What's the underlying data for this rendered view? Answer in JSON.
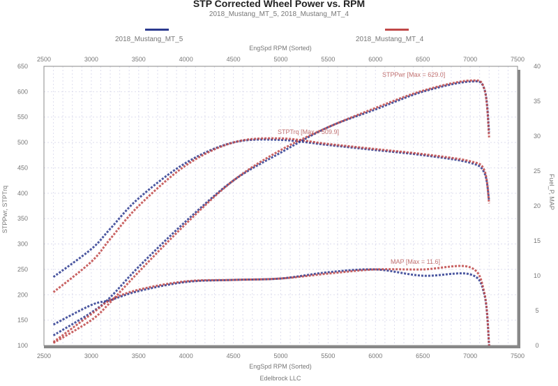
{
  "chart_data": {
    "type": "line",
    "title": "STP Corrected Wheel Power vs. RPM",
    "subtitle": "2018_Mustang_MT_5, 2018_Mustang_MT_4",
    "legend": [
      {
        "name": "2018_Mustang_MT_5",
        "color": "#2b3a8f",
        "position": "top-left"
      },
      {
        "name": "2018_Mustang_MT_4",
        "color": "#c04848",
        "position": "top-right"
      }
    ],
    "xlabel": "EngSpd RPM    (Sorted)",
    "xlabel_top": "EngSpd RPM    (Sorted)",
    "footer": "Edelbrock LLC",
    "ylabel_left": "STPPwr, STPTrq",
    "ylabel_right": "Fuel_P, MAP",
    "xlim": [
      2500,
      7500
    ],
    "xticks": [
      2500,
      3000,
      3500,
      4000,
      4500,
      5000,
      5500,
      6000,
      6500,
      7000,
      7500
    ],
    "ylim_left": [
      100,
      650
    ],
    "yticks_left": [
      100,
      150,
      200,
      250,
      300,
      350,
      400,
      450,
      500,
      550,
      600,
      650
    ],
    "ylim_right": [
      0,
      40
    ],
    "yticks_right": [
      0,
      5,
      10,
      15,
      20,
      25,
      30,
      35,
      40
    ],
    "grid": true,
    "annotations": [
      {
        "text": "STPPwr [Max = 629.0]",
        "x": 6300,
        "y": 622
      },
      {
        "text": "STPTrq [Max = 509.9]",
        "x": 4950,
        "y": 512
      },
      {
        "text": "MAP    [Max = 11.6]",
        "x": 6150,
        "y": 11.4
      }
    ],
    "x": [
      2600,
      3000,
      3200,
      3500,
      4000,
      4500,
      5000,
      5500,
      6000,
      6500,
      7000,
      7150,
      7200
    ],
    "series": [
      {
        "name": "2018_Mustang_MT_5",
        "quantity": "STPTrq",
        "axis": "left",
        "color": "#2b3a8f",
        "values": [
          235,
          290,
          330,
          390,
          460,
          500,
          505,
          495,
          485,
          475,
          460,
          440,
          385
        ]
      },
      {
        "name": "2018_Mustang_MT_4",
        "quantity": "STPTrq",
        "axis": "left",
        "color": "#c04848",
        "values": [
          205,
          265,
          310,
          375,
          455,
          500,
          508,
          497,
          487,
          477,
          463,
          445,
          380
        ]
      },
      {
        "name": "2018_Mustang_MT_5",
        "quantity": "STPPwr",
        "axis": "left",
        "color": "#2b3a8f",
        "values": [
          120,
          165,
          195,
          255,
          345,
          425,
          480,
          530,
          565,
          600,
          620,
          605,
          520
        ]
      },
      {
        "name": "2018_Mustang_MT_4",
        "quantity": "STPPwr",
        "axis": "left",
        "color": "#c04848",
        "values": [
          105,
          150,
          185,
          245,
          340,
          425,
          485,
          530,
          568,
          602,
          622,
          605,
          510
        ]
      },
      {
        "name": "2018_Mustang_MT_5",
        "quantity": "MAP",
        "axis": "right",
        "color": "#2b3a8f",
        "values": [
          3.0,
          5.8,
          6.5,
          7.8,
          9.1,
          9.4,
          9.6,
          10.5,
          10.9,
          10.0,
          10.2,
          7.3,
          0
        ]
      },
      {
        "name": "2018_Mustang_MT_4",
        "quantity": "MAP",
        "axis": "right",
        "color": "#c04848",
        "values": [
          0.5,
          4.5,
          6.5,
          8.0,
          9.2,
          9.4,
          9.6,
          10.3,
          10.9,
          10.9,
          11.2,
          7.5,
          0
        ]
      }
    ]
  }
}
